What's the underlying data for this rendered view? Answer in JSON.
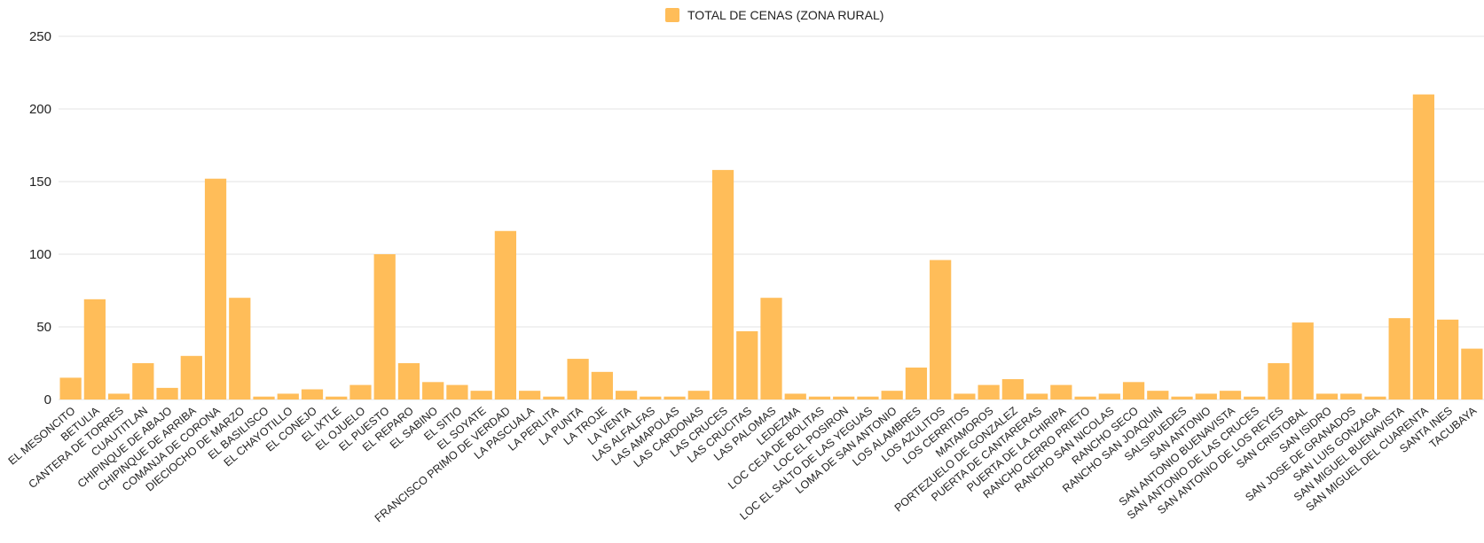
{
  "chart_data": {
    "type": "bar",
    "categories": [
      "EL MESONCITO",
      "BETULIA",
      "CANTERA DE TORRES",
      "CUAUTITLAN",
      "CHIPINQUE DE ABAJO",
      "CHIPINQUE DE ARRIBA",
      "COMANJA DE CORONA",
      "DIECIOCHO DE MARZO",
      "EL BASILISCO",
      "EL CHAYOTILLO",
      "EL CONEJO",
      "EL IXTLE",
      "EL OJUELO",
      "EL PUESTO",
      "EL REPARO",
      "EL SABINO",
      "EL SITIO",
      "EL SOYATE",
      "FRANCISCO PRIMO DE VERDAD",
      "LA PASCUALA",
      "LA PERLITA",
      "LA PUNTA",
      "LA TROJE",
      "LA VENTA",
      "LAS ALFALFAS",
      "LAS AMAPOLAS",
      "LAS CARDONAS",
      "LAS CRUCES",
      "LAS CRUCITAS",
      "LAS PALOMAS",
      "LEDEZMA",
      "LOC CEJA DE BOLITAS",
      "LOC EL POSIRON",
      "LOC EL SALTO DE LAS YEGUAS",
      "LOMA DE SAN ANTONIO",
      "LOS ALAMBRES",
      "LOS AZULITOS",
      "LOS CERRITOS",
      "MATAMOROS",
      "PORTEZUELO DE GONZALEZ",
      "PUERTA DE CANTARERAS",
      "PUERTA DE LA CHIRIPA",
      "RANCHO CERRO PRIETO",
      "RANCHO SAN NICOLAS",
      "RANCHO SECO",
      "RANCHO SAN JOAQUIN",
      "SALSIPUEDES",
      "SAN ANTONIO",
      "SAN ANTONIO BUENAVISTA",
      "SAN ANTONIO DE LAS CRUCES",
      "SAN ANTONIO DE LOS REYES",
      "SAN CRISTOBAL",
      "SAN ISIDRO",
      "SAN JOSE DE GRANADOS",
      "SAN LUIS GONZAGA",
      "SAN MIGUEL BUENAVISTA",
      "SAN MIGUEL DEL CUARENTA",
      "SANTA INES",
      "TACUBAYA"
    ],
    "series": [
      {
        "name": "TOTAL DE CENAS (ZONA RURAL)",
        "values": [
          15,
          69,
          4,
          25,
          8,
          30,
          152,
          70,
          2,
          4,
          7,
          2,
          10,
          100,
          25,
          12,
          10,
          6,
          116,
          6,
          2,
          28,
          19,
          6,
          2,
          2,
          6,
          158,
          47,
          70,
          4,
          2,
          2,
          2,
          6,
          22,
          96,
          4,
          10,
          14,
          4,
          10,
          2,
          4,
          12,
          6,
          2,
          4,
          6,
          2,
          25,
          53,
          4,
          4,
          2,
          56,
          210,
          55,
          35
        ]
      }
    ],
    "yticks": [
      0,
      50,
      100,
      150,
      200,
      250
    ],
    "ylim": [
      0,
      250
    ],
    "grid": true,
    "legend_position": "top-center",
    "colors": {
      "bar": "#FFBD59",
      "grid": "#E3E3E3"
    }
  }
}
